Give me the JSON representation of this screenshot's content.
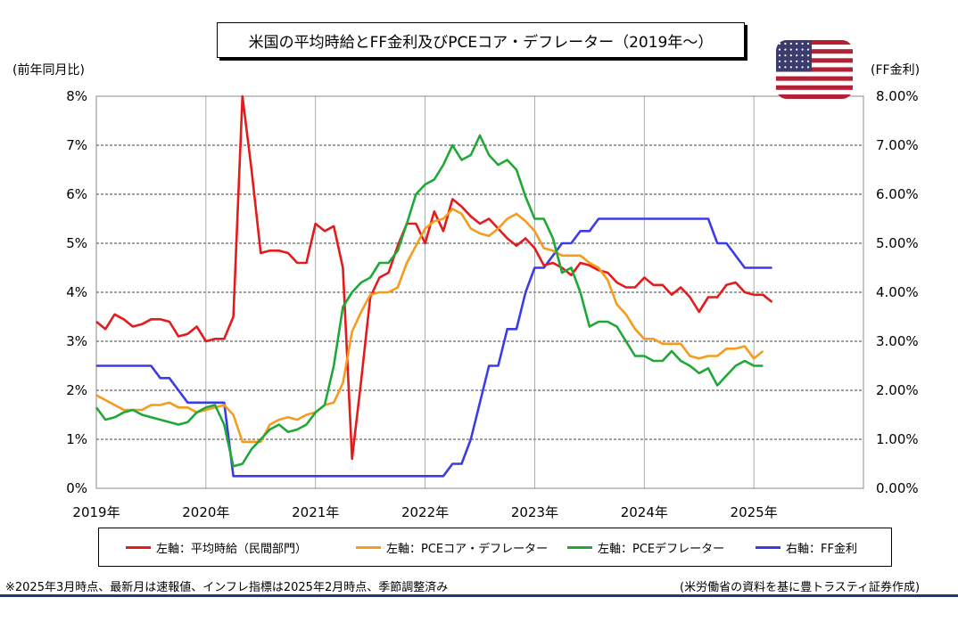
{
  "chart_data": {
    "type": "line",
    "title": "米国の平均時給とFF金利及びPCEコア・デフレーター（2019年～）",
    "left_axis_unit": "(前年同月比)",
    "right_axis_unit": "(FF金利)",
    "left_ticks": [
      "8%",
      "7%",
      "6%",
      "5%",
      "4%",
      "3%",
      "2%",
      "1%",
      "0%"
    ],
    "right_ticks": [
      "8.00%",
      "7.00%",
      "6.00%",
      "5.00%",
      "4.00%",
      "3.00%",
      "2.00%",
      "1.00%",
      "0.00%"
    ],
    "x_ticks": [
      "2019年",
      "2020年",
      "2021年",
      "2022年",
      "2023年",
      "2024年",
      "2025年"
    ],
    "ylim": [
      0,
      8
    ],
    "xlim": [
      "2019-01",
      "2026-01"
    ],
    "grid": true,
    "legend_position": "bottom",
    "series": [
      {
        "name": "左軸：平均時給（民間部門）",
        "axis": "left",
        "color": "#e41a1c",
        "start": "2019-01",
        "values": [
          3.4,
          3.25,
          3.55,
          3.45,
          3.3,
          3.35,
          3.45,
          3.45,
          3.4,
          3.1,
          3.15,
          3.3,
          3.0,
          3.05,
          3.05,
          3.5,
          8.0,
          6.5,
          4.8,
          4.85,
          4.85,
          4.8,
          4.6,
          4.6,
          5.4,
          5.25,
          5.35,
          4.5,
          0.6,
          2.2,
          3.9,
          4.3,
          4.4,
          4.95,
          5.4,
          5.4,
          5.0,
          5.65,
          5.25,
          5.9,
          5.75,
          5.55,
          5.4,
          5.5,
          5.3,
          5.1,
          4.95,
          5.1,
          4.9,
          4.55,
          4.6,
          4.5,
          4.35,
          4.6,
          4.55,
          4.45,
          4.4,
          4.2,
          4.1,
          4.1,
          4.3,
          4.15,
          4.15,
          3.95,
          4.1,
          3.9,
          3.6,
          3.9,
          3.9,
          4.15,
          4.2,
          4.0,
          3.95,
          3.95,
          3.8
        ]
      },
      {
        "name": "左軸：PCEコア・デフレーター",
        "axis": "left",
        "color": "#f59b1d",
        "start": "2019-01",
        "values": [
          1.9,
          1.8,
          1.7,
          1.6,
          1.6,
          1.6,
          1.7,
          1.7,
          1.75,
          1.65,
          1.65,
          1.55,
          1.6,
          1.65,
          1.7,
          1.5,
          0.95,
          0.95,
          0.95,
          1.3,
          1.4,
          1.45,
          1.4,
          1.5,
          1.55,
          1.7,
          1.75,
          2.15,
          3.2,
          3.6,
          3.95,
          4.0,
          4.0,
          4.1,
          4.6,
          4.95,
          5.3,
          5.45,
          5.5,
          5.7,
          5.6,
          5.3,
          5.2,
          5.15,
          5.3,
          5.5,
          5.6,
          5.45,
          5.25,
          4.9,
          4.85,
          4.75,
          4.75,
          4.75,
          4.6,
          4.5,
          4.25,
          3.75,
          3.55,
          3.25,
          3.05,
          3.05,
          2.95,
          2.95,
          2.95,
          2.7,
          2.65,
          2.7,
          2.7,
          2.85,
          2.85,
          2.9,
          2.65,
          2.8
        ]
      },
      {
        "name": "左軸：PCEデフレーター",
        "axis": "left",
        "color": "#1fa838",
        "start": "2019-01",
        "values": [
          1.65,
          1.4,
          1.45,
          1.55,
          1.6,
          1.5,
          1.45,
          1.4,
          1.35,
          1.3,
          1.35,
          1.55,
          1.65,
          1.7,
          1.3,
          0.45,
          0.5,
          0.8,
          1.0,
          1.2,
          1.3,
          1.15,
          1.2,
          1.3,
          1.55,
          1.7,
          2.5,
          3.7,
          4.0,
          4.2,
          4.3,
          4.6,
          4.6,
          4.85,
          5.4,
          6.0,
          6.2,
          6.3,
          6.6,
          7.0,
          6.7,
          6.8,
          7.2,
          6.8,
          6.6,
          6.7,
          6.5,
          5.95,
          5.5,
          5.5,
          5.1,
          4.4,
          4.5,
          4.0,
          3.3,
          3.4,
          3.4,
          3.3,
          3.0,
          2.7,
          2.7,
          2.6,
          2.6,
          2.8,
          2.6,
          2.5,
          2.35,
          2.45,
          2.1,
          2.3,
          2.5,
          2.6,
          2.5,
          2.5
        ]
      },
      {
        "name": "右軸：FF金利",
        "axis": "right",
        "color": "#3b3bea",
        "start": "2019-01",
        "values": [
          2.5,
          2.5,
          2.5,
          2.5,
          2.5,
          2.5,
          2.5,
          2.25,
          2.25,
          2.0,
          1.75,
          1.75,
          1.75,
          1.75,
          1.75,
          0.25,
          0.25,
          0.25,
          0.25,
          0.25,
          0.25,
          0.25,
          0.25,
          0.25,
          0.25,
          0.25,
          0.25,
          0.25,
          0.25,
          0.25,
          0.25,
          0.25,
          0.25,
          0.25,
          0.25,
          0.25,
          0.25,
          0.25,
          0.25,
          0.5,
          0.5,
          1.0,
          1.75,
          2.5,
          2.5,
          3.25,
          3.25,
          4.0,
          4.5,
          4.5,
          4.75,
          5.0,
          5.0,
          5.25,
          5.25,
          5.5,
          5.5,
          5.5,
          5.5,
          5.5,
          5.5,
          5.5,
          5.5,
          5.5,
          5.5,
          5.5,
          5.5,
          5.5,
          5.0,
          5.0,
          4.75,
          4.5,
          4.5,
          4.5,
          4.5
        ]
      }
    ]
  },
  "flag": {
    "name": "us-flag-icon",
    "colors": {
      "red": "#b22234",
      "white": "#ffffff",
      "blue": "#3c3b6e"
    }
  },
  "notes": {
    "left": "※2025年3月時点、最新月は速報値、インフレ指標は2025年2月時点、季節調整済み",
    "right": "(米労働省の資料を基に豊トラスティ証券作成)"
  }
}
